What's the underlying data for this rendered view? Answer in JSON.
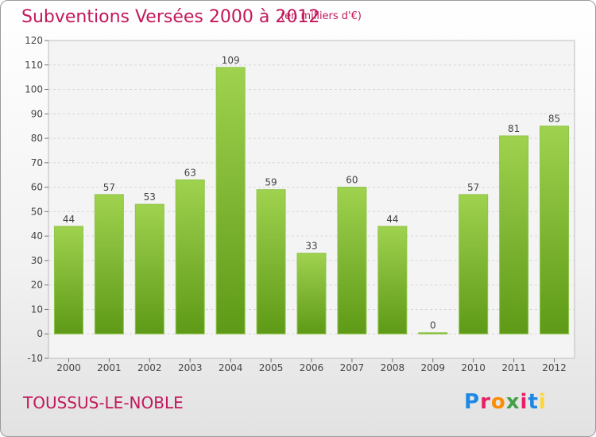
{
  "title": "Subventions Versées 2000 à 2012",
  "subtitle": "(en milliers d'€)",
  "place_name": "TOUSSUS-LE-NOBLE",
  "logo": {
    "text": "Proxiti",
    "letters": [
      {
        "char": "P",
        "color": "#1e88e5"
      },
      {
        "char": "r",
        "color": "#e91e63"
      },
      {
        "char": "o",
        "color": "#fb8c00"
      },
      {
        "char": "x",
        "color": "#43a047"
      },
      {
        "char": "i",
        "color": "#e91e63"
      },
      {
        "char": "t",
        "color": "#1e88e5"
      },
      {
        "char": "i",
        "color": "#fdd835"
      }
    ]
  },
  "chart_data": {
    "type": "bar",
    "categories": [
      "2000",
      "2001",
      "2002",
      "2003",
      "2004",
      "2005",
      "2006",
      "2007",
      "2008",
      "2009",
      "2010",
      "2011",
      "2012"
    ],
    "values": [
      44,
      57,
      53,
      63,
      109,
      59,
      33,
      60,
      44,
      0,
      57,
      81,
      85
    ],
    "data_labels": [
      "44",
      "57",
      "53",
      "63",
      "109",
      "59",
      "33",
      "60",
      "44",
      "0",
      "57",
      "81",
      "85"
    ],
    "y_ticks": [
      -10,
      0,
      10,
      20,
      30,
      40,
      50,
      60,
      70,
      80,
      90,
      100,
      110,
      120
    ],
    "y_tick_labels": [
      "-10",
      "0",
      "10",
      "20",
      "30",
      "40",
      "50",
      "60",
      "70",
      "80",
      "90",
      "100",
      "110",
      "120"
    ],
    "ylim": [
      -10,
      120
    ],
    "grid": true,
    "bar_color": "#7cb82f",
    "legend": "none"
  }
}
